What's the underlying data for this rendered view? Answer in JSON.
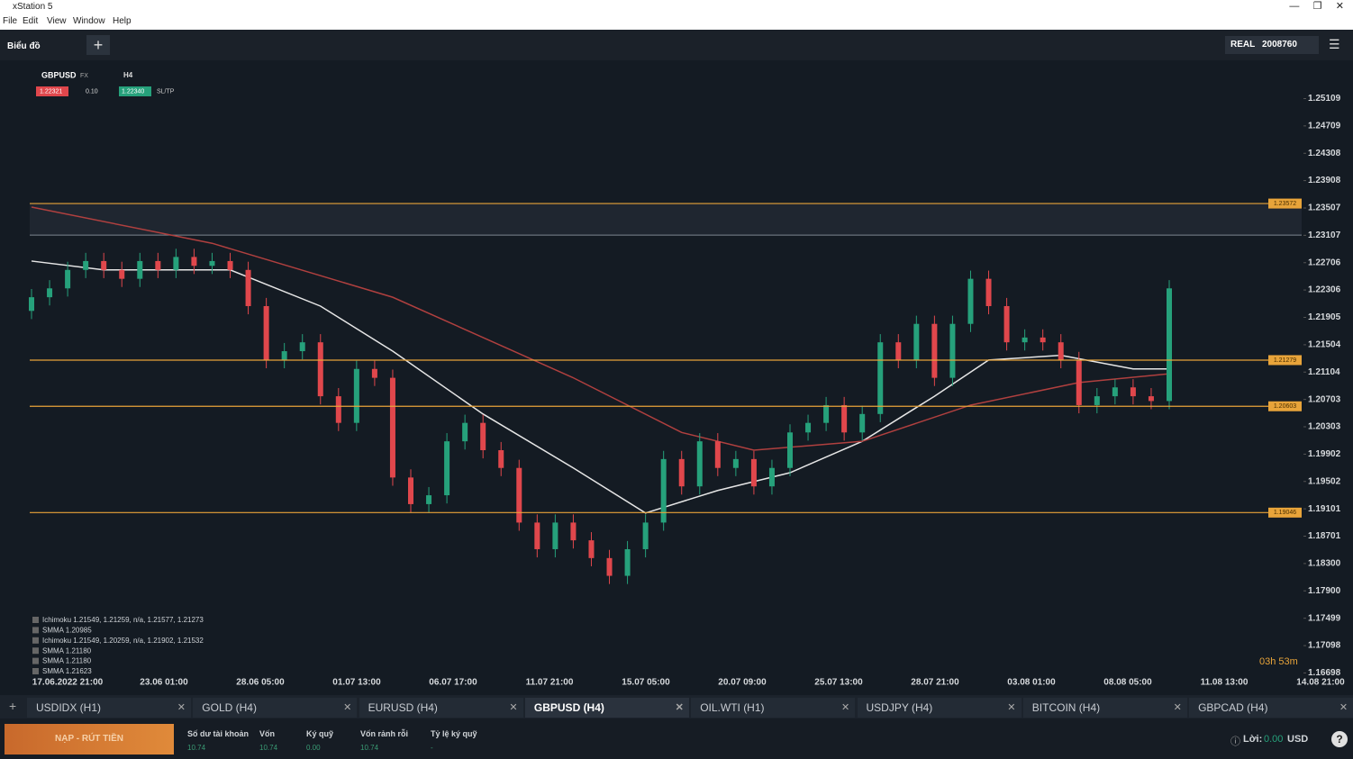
{
  "window": {
    "title": "xStation 5",
    "menu": [
      "File",
      "Edit",
      "View",
      "Window",
      "Help"
    ]
  },
  "toolbar": {
    "section": "Biểu đồ",
    "account_type": "REAL",
    "account_id": "2008760"
  },
  "chart_header": {
    "symbol": "GBPUSD",
    "market": "FX",
    "timeframe": "H4",
    "sell": "1.22321",
    "volume": "0.10",
    "buy": "1.22340",
    "sltp": "SL/TP"
  },
  "chart_data": {
    "type": "candlestick",
    "ylim": [
      1.164,
      1.2563
    ],
    "yticks": [
      1.25109,
      1.24709,
      1.24308,
      1.23908,
      1.23507,
      1.23107,
      1.22706,
      1.22306,
      1.21905,
      1.21504,
      1.21104,
      1.20703,
      1.20303,
      1.19902,
      1.19502,
      1.19101,
      1.18701,
      {
        "value": 1.183,
        "label": "1.18300"
      },
      {
        "value": 1.179,
        "label": "1.17900"
      },
      1.17499,
      1.17098,
      1.16698
    ],
    "x_labels": [
      "17.06.2022 21:00",
      "23.06 01:00",
      "28.06 05:00",
      "01.07 13:00",
      "06.07 17:00",
      "11.07 21:00",
      "15.07 05:00",
      "20.07 09:00",
      "25.07 13:00",
      "28.07 21:00",
      "03.08 01:00",
      "08.08 05:00",
      "11.08 13:00",
      "14.08 21:00"
    ],
    "up_color": "#26a17b",
    "down_color": "#e0474c",
    "candles": [
      [
        1.22,
        1.2232,
        1.2188,
        1.222
      ],
      [
        1.222,
        1.2245,
        1.2208,
        1.2233
      ],
      [
        1.2233,
        1.2272,
        1.2221,
        1.226
      ],
      [
        1.226,
        1.2285,
        1.2248,
        1.2273
      ],
      [
        1.2273,
        1.2285,
        1.2248,
        1.226
      ],
      [
        1.226,
        1.2272,
        1.2235,
        1.2247
      ],
      [
        1.2247,
        1.2285,
        1.2235,
        1.2273
      ],
      [
        1.2273,
        1.2285,
        1.2248,
        1.226
      ],
      [
        1.226,
        1.2291,
        1.2248,
        1.2279
      ],
      [
        1.2279,
        1.2291,
        1.2254,
        1.2266
      ],
      [
        1.2266,
        1.2285,
        1.2254,
        1.2273
      ],
      [
        1.2273,
        1.2285,
        1.2248,
        1.226
      ],
      [
        1.226,
        1.2272,
        1.2195,
        1.2207
      ],
      [
        1.2207,
        1.2219,
        1.2116,
        1.2128
      ],
      [
        1.2128,
        1.2153,
        1.2116,
        1.2141
      ],
      [
        1.2141,
        1.2166,
        1.2129,
        1.2154
      ],
      [
        1.2154,
        1.2166,
        1.2063,
        1.2075
      ],
      [
        1.2075,
        1.2087,
        1.2024,
        1.2036
      ],
      [
        1.2036,
        1.2127,
        1.2024,
        1.2115
      ],
      [
        1.2115,
        1.2127,
        1.209,
        1.2102
      ],
      [
        1.2102,
        1.2114,
        1.1944,
        1.1956
      ],
      [
        1.1956,
        1.1968,
        1.1905,
        1.1917
      ],
      [
        1.1917,
        1.1942,
        1.1905,
        1.193
      ],
      [
        1.193,
        1.2021,
        1.1918,
        1.2009
      ],
      [
        1.2009,
        1.2048,
        1.1997,
        1.2036
      ],
      [
        1.2036,
        1.2048,
        1.1984,
        1.1996
      ],
      [
        1.1996,
        1.2008,
        1.1958,
        1.197
      ],
      [
        1.197,
        1.1982,
        1.1878,
        1.189
      ],
      [
        1.189,
        1.1902,
        1.1839,
        1.1851
      ],
      [
        1.1851,
        1.1902,
        1.1839,
        1.189
      ],
      [
        1.189,
        1.1902,
        1.1852,
        1.1864
      ],
      [
        1.1864,
        1.1876,
        1.1826,
        1.1838
      ],
      [
        1.1838,
        1.185,
        1.18,
        1.1812
      ],
      [
        1.1812,
        1.1863,
        1.18,
        1.1851
      ],
      [
        1.1851,
        1.1902,
        1.1839,
        1.189
      ],
      [
        1.189,
        1.1995,
        1.1878,
        1.1983
      ],
      [
        1.1983,
        1.1995,
        1.1931,
        1.1943
      ],
      [
        1.1943,
        1.2021,
        1.1931,
        1.2009
      ],
      [
        1.2009,
        1.2021,
        1.1958,
        1.197
      ],
      [
        1.197,
        1.1995,
        1.1958,
        1.1983
      ],
      [
        1.1983,
        1.1995,
        1.1931,
        1.1943
      ],
      [
        1.1943,
        1.1982,
        1.1931,
        1.197
      ],
      [
        1.197,
        1.2034,
        1.1958,
        1.2022
      ],
      [
        1.2022,
        1.2048,
        1.201,
        1.2036
      ],
      [
        1.2036,
        1.2074,
        1.2024,
        1.2062
      ],
      [
        1.2062,
        1.2074,
        1.201,
        1.2022
      ],
      [
        1.2022,
        1.2061,
        1.201,
        1.2049
      ],
      [
        1.2049,
        1.2166,
        1.2037,
        1.2154
      ],
      [
        1.2154,
        1.2166,
        1.2116,
        1.2128
      ],
      [
        1.2128,
        1.2193,
        1.2116,
        1.2181
      ],
      [
        1.2181,
        1.2193,
        1.209,
        1.2102
      ],
      [
        1.2102,
        1.2193,
        1.209,
        1.2181
      ],
      [
        1.2181,
        1.2259,
        1.2169,
        1.2247
      ],
      [
        1.2247,
        1.2259,
        1.2195,
        1.2207
      ],
      [
        1.2207,
        1.2219,
        1.2142,
        1.2154
      ],
      [
        1.2154,
        1.2173,
        1.2142,
        1.2161
      ],
      [
        1.2161,
        1.2173,
        1.2142,
        1.2154
      ],
      [
        1.2154,
        1.2166,
        1.2116,
        1.2128
      ],
      [
        1.2128,
        1.214,
        1.205,
        1.2062
      ],
      [
        1.2062,
        1.2087,
        1.205,
        1.2075
      ],
      [
        1.2075,
        1.21,
        1.2063,
        1.2088
      ],
      [
        1.2088,
        1.21,
        1.2063,
        1.2075
      ],
      [
        1.2075,
        1.2087,
        1.2056,
        1.2068
      ],
      [
        1.2068,
        1.2245,
        1.2056,
        1.2233
      ]
    ],
    "lines": [
      {
        "color": "#e6e6e6",
        "x": [
          0,
          4,
          11,
          16,
          20,
          25,
          30,
          34,
          38,
          42,
          46,
          50,
          53,
          57,
          61,
          63
        ],
        "values": [
          1.2273,
          1.226,
          1.226,
          1.2207,
          1.2141,
          1.2049,
          1.197,
          1.1904,
          1.1937,
          1.1963,
          1.2009,
          1.2075,
          1.2128,
          1.2135,
          1.2115,
          1.2115
        ]
      },
      {
        "color": "#b0403f",
        "x": [
          0,
          10,
          20,
          30,
          36,
          40,
          46,
          52,
          58,
          63
        ],
        "values": [
          1.2352,
          1.2299,
          1.222,
          1.2102,
          1.2022,
          1.1996,
          1.2009,
          1.2062,
          1.2095,
          1.2108
        ]
      }
    ],
    "zone": [
      1.23572,
      1.2311
    ],
    "levels": [
      1.23572,
      1.21279,
      1.20603,
      1.19046
    ],
    "level_color": "#e8a43a",
    "countdown": "03h 53m",
    "legend": [
      "Ichimoku 1.21549, 1.21259, n/a, 1.21577, 1.21273",
      "SMMA 1.20985",
      "Ichimoku 1.21549, 1.20259, n/a, 1.21902, 1.21532",
      "SMMA 1.21180",
      "SMMA 1.21180",
      "SMMA 1.21623"
    ]
  },
  "tabs": [
    "USDIDX (H1)",
    "GOLD (H4)",
    "EURUSD (H4)",
    "GBPUSD (H4)",
    "OIL.WTI (H1)",
    "USDJPY (H4)",
    "BITCOIN (H4)",
    "GBPCAD (H4)"
  ],
  "account": {
    "deposit_button": "NẠP - RÚT TIỀN",
    "fields": [
      {
        "label": "Số dư tài khoản",
        "value": "10.74"
      },
      {
        "label": "Vốn",
        "value": "10.74"
      },
      {
        "label": "Ký quỹ",
        "value": "0.00"
      },
      {
        "label": "Vốn rảnh rỗi",
        "value": "10.74"
      },
      {
        "label": "Tỷ lệ ký quỹ",
        "value": "-"
      }
    ],
    "profit_label": "Lời:",
    "profit": "0.00",
    "currency": "USD"
  }
}
